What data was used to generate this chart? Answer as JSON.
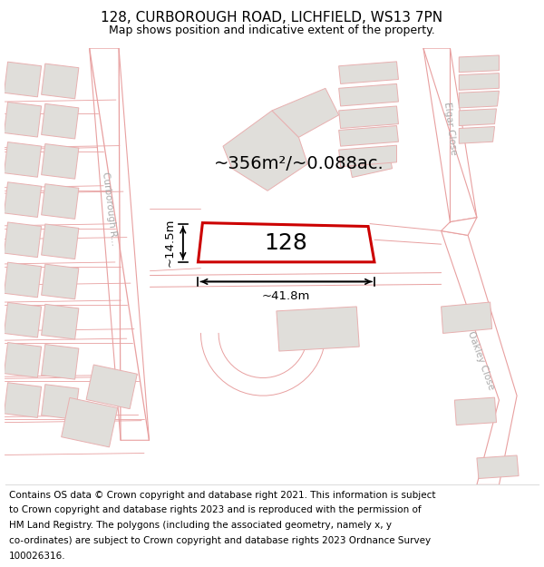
{
  "title_line1": "128, CURBOROUGH ROAD, LICHFIELD, WS13 7PN",
  "title_line2": "Map shows position and indicative extent of the property.",
  "area_text": "~356m²/~0.088ac.",
  "plot_number": "128",
  "dim_width": "~41.8m",
  "dim_height": "~14.5m",
  "road_label_left": "Curborough R...",
  "road_label_curb": "Curborough R...",
  "road_label_elgar": "Elgar Close",
  "road_label_oakley": "Oakley Close",
  "footer_lines": [
    "Contains OS data © Crown copyright and database right 2021. This information is subject",
    "to Crown copyright and database rights 2023 and is reproduced with the permission of",
    "HM Land Registry. The polygons (including the associated geometry, namely x, y",
    "co-ordinates) are subject to Crown copyright and database rights 2023 Ordnance Survey",
    "100026316."
  ],
  "map_bg": "#f2f0ed",
  "building_fill": "#e0deda",
  "building_edge": "#e8b0b0",
  "road_fill": "#ffffff",
  "plot_fill": "#ffffff",
  "plot_edge": "#cc0000",
  "road_pink": "#e8a0a0",
  "road_gray": "#c8c8c8",
  "title_fontsize": 11,
  "subtitle_fontsize": 9,
  "footer_fontsize": 7.5,
  "label_color": "#aaaaaa"
}
